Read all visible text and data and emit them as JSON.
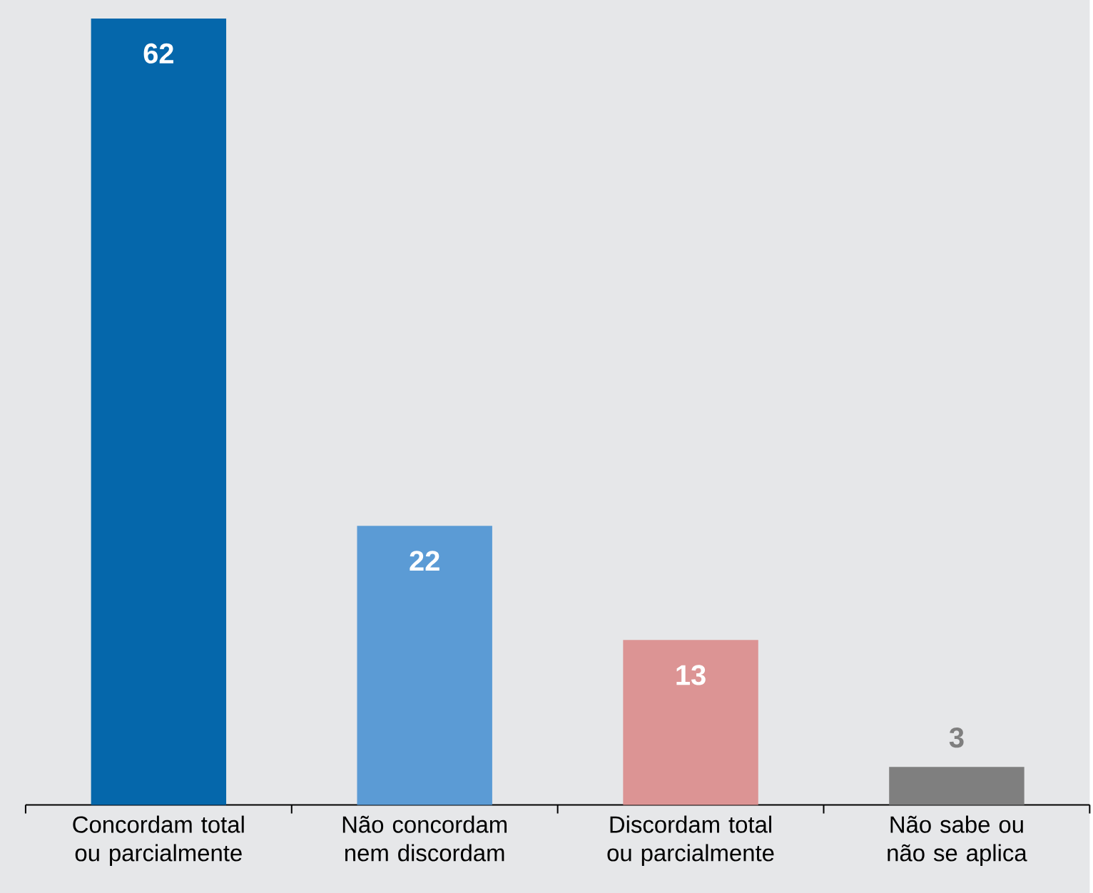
{
  "chart_data": {
    "type": "bar",
    "categories": [
      "Concordam total ou parcialmente",
      "Não concordam nem discordam",
      "Discordam total ou parcialmente",
      "Não sabe ou não se aplica"
    ],
    "values": [
      62,
      22,
      13,
      3
    ],
    "colors": [
      "#0567ab",
      "#5b9bd5",
      "#dc9494",
      "#7f7f7f"
    ],
    "data_labels": true,
    "grid": false
  }
}
